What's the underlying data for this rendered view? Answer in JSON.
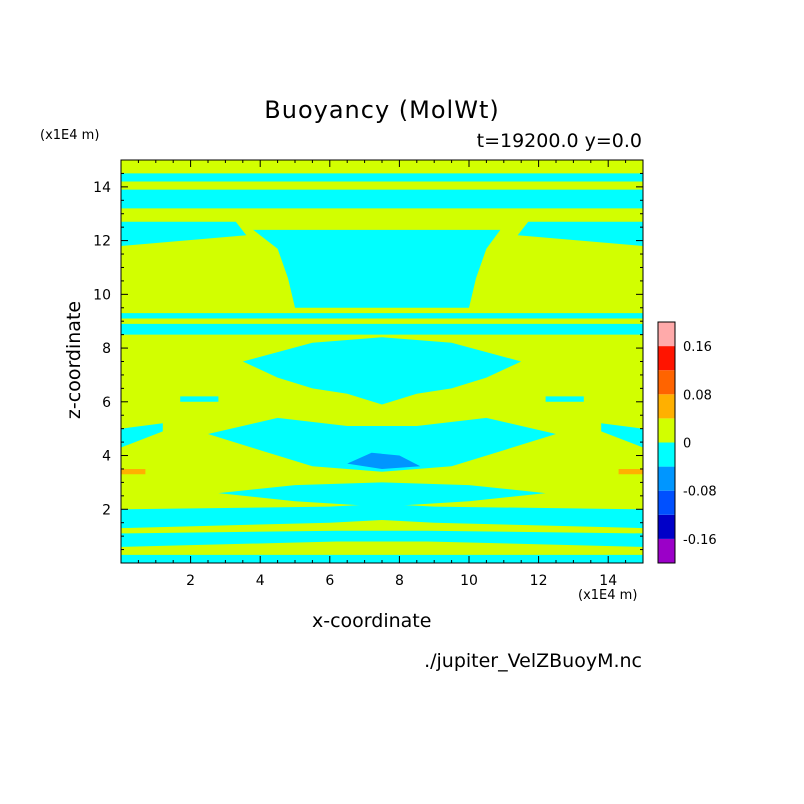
{
  "chart_data": {
    "type": "heatmap",
    "title": "Buoyancy (MolWt)",
    "subtitle": "t=19200.0 y=0.0",
    "xlabel": "x-coordinate",
    "ylabel": "z-coordinate",
    "x_unit": "(x1E4 m)",
    "y_unit": "(x1E4 m)",
    "source_label": "./jupiter_VelZBuoyM.nc",
    "xlim": [
      0,
      15
    ],
    "ylim": [
      0,
      15
    ],
    "x_ticks": [
      2,
      4,
      6,
      8,
      10,
      12,
      14
    ],
    "y_ticks": [
      2,
      4,
      6,
      8,
      10,
      12,
      14
    ],
    "background_level": "0 to 0.04",
    "colorbar": {
      "levels": [
        -0.2,
        -0.16,
        -0.12,
        -0.08,
        -0.04,
        0,
        0.04,
        0.08,
        0.12,
        0.16,
        0.2
      ],
      "colors": [
        "#9b00c8",
        "#0000c8",
        "#0050ff",
        "#0096ff",
        "#00ffff",
        "#d2ff00",
        "#ffb000",
        "#ff6400",
        "#ff1400",
        "#ffaaaa"
      ],
      "tick_labels": [
        "0.16",
        "0.08",
        "0",
        "-0.08",
        "-0.16"
      ],
      "tick_values": [
        0.16,
        0.08,
        0,
        -0.08,
        -0.16
      ]
    },
    "regions": [
      {
        "level": "-0.04 to 0",
        "x": [
          0,
          15,
          15,
          0
        ],
        "z": [
          14.2,
          14.2,
          14.5,
          14.5
        ]
      },
      {
        "level": "-0.04 to 0",
        "x": [
          0,
          15,
          15,
          0
        ],
        "z": [
          13.2,
          13.2,
          13.9,
          13.9
        ]
      },
      {
        "level": "-0.04 to 0",
        "x": [
          0,
          3.6,
          3.3,
          0
        ],
        "z": [
          11.8,
          12.2,
          12.7,
          12.7
        ]
      },
      {
        "level": "-0.04 to 0",
        "x": [
          15,
          11.4,
          11.7,
          15
        ],
        "z": [
          11.8,
          12.2,
          12.7,
          12.7
        ]
      },
      {
        "level": "-0.04 to 0",
        "x": [
          3.8,
          10.9,
          10.5,
          10.2,
          10.0,
          5.0,
          4.8,
          4.5
        ],
        "z": [
          12.4,
          12.4,
          11.7,
          10.6,
          9.5,
          9.5,
          10.6,
          11.7
        ]
      },
      {
        "level": "-0.04 to 0",
        "x": [
          0,
          15,
          15,
          0
        ],
        "z": [
          9.1,
          9.1,
          9.3,
          9.3
        ]
      },
      {
        "level": "-0.04 to 0",
        "x": [
          0,
          15,
          15,
          0
        ],
        "z": [
          8.5,
          8.5,
          8.9,
          8.9
        ]
      },
      {
        "level": "-0.04 to 0",
        "x": [
          3.5,
          5.5,
          7.5,
          9.5,
          11.5,
          10.5,
          9.5,
          8.5,
          7.5,
          6.5,
          5.5,
          4.5
        ],
        "z": [
          7.5,
          8.2,
          8.4,
          8.2,
          7.5,
          6.9,
          6.5,
          6.3,
          5.9,
          6.3,
          6.5,
          6.9
        ]
      },
      {
        "level": "-0.04 to 0",
        "x": [
          2.5,
          4.5,
          6.5,
          8.5,
          10.5,
          12.5,
          11,
          9.5,
          7.5,
          5.5,
          4
        ],
        "z": [
          4.8,
          5.4,
          5.1,
          5.1,
          5.4,
          4.8,
          4.2,
          3.6,
          3.4,
          3.6,
          4.2
        ]
      },
      {
        "level": "-0.08 to -0.04",
        "x": [
          6.5,
          7.2,
          8.0,
          8.6,
          7.5
        ],
        "z": [
          3.7,
          4.1,
          4.0,
          3.6,
          3.5
        ]
      },
      {
        "level": "-0.04 to 0",
        "x": [
          0,
          1.2,
          1.2,
          0
        ],
        "z": [
          4.3,
          4.9,
          5.2,
          5.0
        ]
      },
      {
        "level": "-0.04 to 0",
        "x": [
          15,
          13.8,
          13.8,
          15
        ],
        "z": [
          4.3,
          4.9,
          5.2,
          5.0
        ]
      },
      {
        "level": "-0.04 to 0",
        "x": [
          1.7,
          2.8,
          2.8,
          1.7
        ],
        "z": [
          6.0,
          6.0,
          6.2,
          6.2
        ]
      },
      {
        "level": "-0.04 to 0",
        "x": [
          12.2,
          13.3,
          13.3,
          12.2
        ],
        "z": [
          6.0,
          6.0,
          6.2,
          6.2
        ]
      },
      {
        "level": "-0.04 to 0",
        "x": [
          2.8,
          5.0,
          7.5,
          10.0,
          12.2,
          10.0,
          7.5,
          5.0
        ],
        "z": [
          2.6,
          2.9,
          3.0,
          2.9,
          2.6,
          2.3,
          2.1,
          2.3
        ]
      },
      {
        "level": "-0.04 to 0",
        "x": [
          0,
          6.0,
          7.5,
          9.0,
          15,
          15,
          9.0,
          7.5,
          6.0,
          0
        ],
        "z": [
          1.3,
          1.5,
          1.6,
          1.5,
          1.3,
          2.0,
          2.1,
          2.2,
          2.1,
          2.0
        ]
      },
      {
        "level": "-0.04 to 0",
        "x": [
          0,
          6.2,
          8.8,
          15,
          15,
          8.8,
          6.2,
          0
        ],
        "z": [
          0.6,
          0.8,
          0.8,
          0.6,
          1.1,
          1.2,
          1.2,
          1.1
        ]
      },
      {
        "level": "-0.04 to 0",
        "x": [
          0,
          15,
          15,
          0
        ],
        "z": [
          0,
          0,
          0.3,
          0.3
        ]
      },
      {
        "level": "0.04 to 0.08",
        "x": [
          0,
          0.7,
          0.7,
          0
        ],
        "z": [
          3.3,
          3.3,
          3.5,
          3.5
        ]
      },
      {
        "level": "0.04 to 0.08",
        "x": [
          14.3,
          15,
          15,
          14.3
        ],
        "z": [
          3.3,
          3.3,
          3.5,
          3.5
        ]
      }
    ]
  }
}
